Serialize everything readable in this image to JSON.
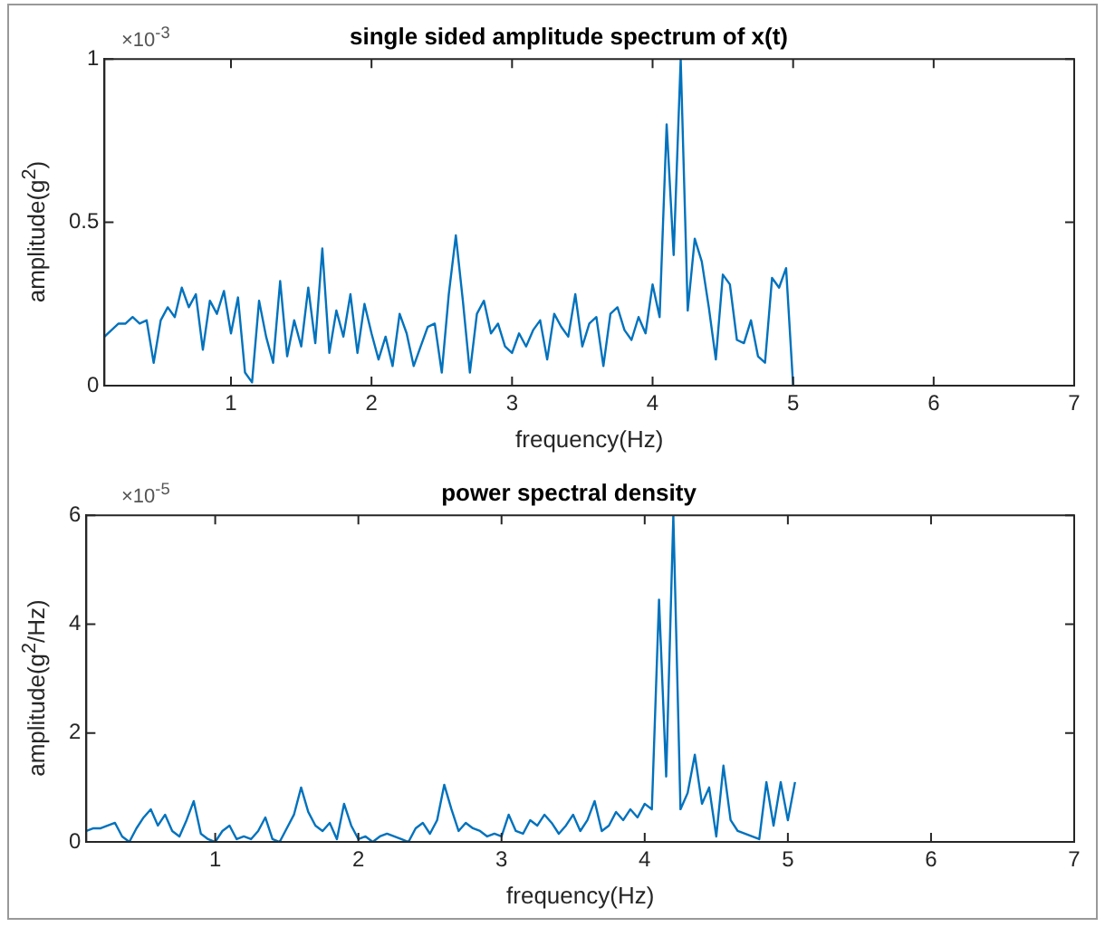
{
  "chart_data": [
    {
      "type": "line",
      "title": "single sided amplitude spectrum of x(t)",
      "xlabel": "frequency(Hz)",
      "ylabel": "amplitude(g$^{2}$)",
      "annotations": [
        "×10$^{-3}$"
      ],
      "series": [
        {
          "color": "#0072bd",
          "x": [
            0.1,
            0.15,
            0.2,
            0.25,
            0.3,
            0.35,
            0.4,
            0.45,
            0.5,
            0.55,
            0.6,
            0.65,
            0.7,
            0.75,
            0.8,
            0.85,
            0.9,
            0.95,
            1.0,
            1.05,
            1.1,
            1.15,
            1.2,
            1.25,
            1.3,
            1.35,
            1.4,
            1.45,
            1.5,
            1.55,
            1.6,
            1.65,
            1.7,
            1.75,
            1.8,
            1.85,
            1.9,
            1.95,
            2.0,
            2.05,
            2.1,
            2.15,
            2.2,
            2.25,
            2.3,
            2.35,
            2.4,
            2.45,
            2.5,
            2.55,
            2.6,
            2.65,
            2.7,
            2.75,
            2.8,
            2.85,
            2.9,
            2.95,
            3.0,
            3.05,
            3.1,
            3.15,
            3.2,
            3.25,
            3.3,
            3.35,
            3.4,
            3.45,
            3.5,
            3.55,
            3.6,
            3.65,
            3.7,
            3.75,
            3.8,
            3.85,
            3.9,
            3.95,
            4.0,
            4.05,
            4.1,
            4.15,
            4.2,
            4.25,
            4.3,
            4.35,
            4.4,
            4.45,
            4.5,
            4.55,
            4.6,
            4.65,
            4.7,
            4.75,
            4.8,
            4.85,
            4.9,
            4.95,
            5.0
          ],
          "values": [
            0.15,
            0.17,
            0.19,
            0.19,
            0.21,
            0.19,
            0.2,
            0.07,
            0.2,
            0.24,
            0.21,
            0.3,
            0.24,
            0.28,
            0.11,
            0.26,
            0.22,
            0.29,
            0.16,
            0.27,
            0.04,
            0.01,
            0.26,
            0.15,
            0.07,
            0.32,
            0.09,
            0.2,
            0.12,
            0.3,
            0.13,
            0.42,
            0.1,
            0.23,
            0.15,
            0.28,
            0.1,
            0.25,
            0.16,
            0.08,
            0.15,
            0.06,
            0.22,
            0.16,
            0.06,
            0.12,
            0.18,
            0.19,
            0.04,
            0.28,
            0.46,
            0.26,
            0.04,
            0.22,
            0.26,
            0.16,
            0.19,
            0.12,
            0.1,
            0.16,
            0.12,
            0.17,
            0.2,
            0.08,
            0.22,
            0.18,
            0.15,
            0.28,
            0.12,
            0.19,
            0.21,
            0.06,
            0.22,
            0.24,
            0.17,
            0.14,
            0.21,
            0.16,
            0.31,
            0.21,
            0.8,
            0.4,
            1.0,
            0.23,
            0.45,
            0.38,
            0.24,
            0.08,
            0.34,
            0.31,
            0.14,
            0.13,
            0.2,
            0.09,
            0.07,
            0.33,
            0.3,
            0.36,
            0
          ]
        }
      ],
      "xlim": [
        0.1,
        7
      ],
      "xticks": [
        1,
        2,
        3,
        4,
        5,
        6,
        7
      ],
      "ylim": [
        0,
        1
      ],
      "yticks": [
        0,
        0.5,
        1
      ],
      "grid": false,
      "legend": false
    },
    {
      "type": "line",
      "title": "power spectral density",
      "xlabel": "frequency(Hz)",
      "ylabel": "amplitude(g$^{2}$/Hz)",
      "annotations": [
        "×10$^{-5}$"
      ],
      "series": [
        {
          "color": "#0072bd",
          "x": [
            0.1,
            0.15,
            0.2,
            0.25,
            0.3,
            0.35,
            0.4,
            0.45,
            0.5,
            0.55,
            0.6,
            0.65,
            0.7,
            0.75,
            0.8,
            0.85,
            0.9,
            0.95,
            1.0,
            1.05,
            1.1,
            1.15,
            1.2,
            1.25,
            1.3,
            1.35,
            1.4,
            1.45,
            1.5,
            1.55,
            1.6,
            1.65,
            1.7,
            1.75,
            1.8,
            1.85,
            1.9,
            1.95,
            2.0,
            2.05,
            2.1,
            2.15,
            2.2,
            2.25,
            2.3,
            2.35,
            2.4,
            2.45,
            2.5,
            2.55,
            2.6,
            2.65,
            2.7,
            2.75,
            2.8,
            2.85,
            2.9,
            2.95,
            3.0,
            3.05,
            3.1,
            3.15,
            3.2,
            3.25,
            3.3,
            3.35,
            3.4,
            3.45,
            3.5,
            3.55,
            3.6,
            3.65,
            3.7,
            3.75,
            3.8,
            3.85,
            3.9,
            3.95,
            4.0,
            4.05,
            4.1,
            4.15,
            4.2,
            4.25,
            4.3,
            4.35,
            4.4,
            4.45,
            4.5,
            4.55,
            4.6,
            4.65,
            4.7,
            4.75,
            4.8,
            4.85,
            4.9,
            4.95,
            5.0,
            5.05
          ],
          "values": [
            0.2,
            0.25,
            0.25,
            0.3,
            0.35,
            0.1,
            0,
            0.25,
            0.45,
            0.6,
            0.3,
            0.5,
            0.2,
            0.1,
            0.4,
            0.75,
            0.15,
            0.05,
            0,
            0.2,
            0.3,
            0.05,
            0.1,
            0.05,
            0.2,
            0.45,
            0.05,
            0,
            0.25,
            0.5,
            1.0,
            0.55,
            0.3,
            0.2,
            0.35,
            0.05,
            0.7,
            0.3,
            0.05,
            0.1,
            0,
            0.1,
            0.15,
            0.1,
            0.05,
            0,
            0.25,
            0.35,
            0.15,
            0.4,
            1.05,
            0.6,
            0.2,
            0.35,
            0.25,
            0.2,
            0.1,
            0.15,
            0.1,
            0.5,
            0.2,
            0.15,
            0.4,
            0.3,
            0.5,
            0.35,
            0.15,
            0.3,
            0.5,
            0.2,
            0.4,
            0.75,
            0.2,
            0.3,
            0.55,
            0.4,
            0.6,
            0.45,
            0.7,
            0.6,
            4.45,
            1.2,
            6.0,
            0.6,
            0.9,
            1.6,
            0.7,
            1.0,
            0.1,
            1.4,
            0.4,
            0.2,
            0.15,
            0.1,
            0.05,
            1.1,
            0.3,
            1.1,
            0.4,
            1.1
          ]
        }
      ],
      "xlim": [
        0.1,
        7
      ],
      "xticks": [
        1,
        2,
        3,
        4,
        5,
        6,
        7
      ],
      "ylim": [
        0,
        6
      ],
      "yticks": [
        0,
        2,
        4,
        6
      ],
      "grid": false,
      "legend": false
    }
  ]
}
